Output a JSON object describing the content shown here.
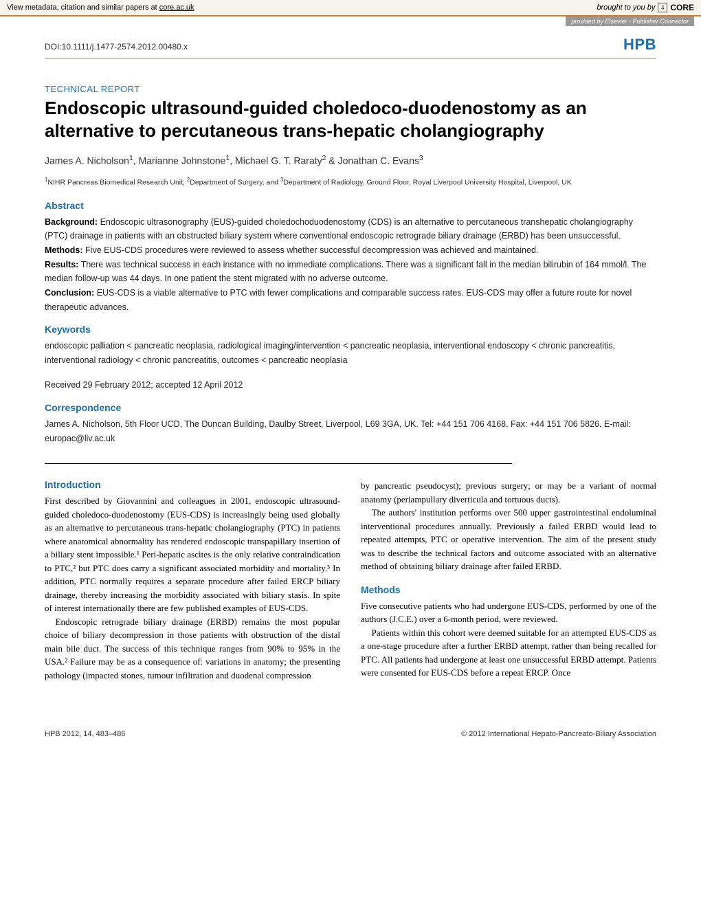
{
  "banner": {
    "left_pre": "View metadata, citation and similar papers at ",
    "link_text": "core.ac.uk",
    "right_pre": "brought to you by",
    "core_label": "CORE",
    "provided": "provided by Elsevier - Publisher Connector"
  },
  "header": {
    "doi": "DOI:10.1111/j.1477-2574.2012.00480.x",
    "journal": "HPB"
  },
  "section_label": "TECHNICAL REPORT",
  "title": "Endoscopic ultrasound-guided choledoco-duodenostomy as an alternative to percutaneous trans-hepatic cholangiography",
  "authors_html": "James A. Nicholson<sup>1</sup>, Marianne Johnstone<sup>1</sup>, Michael G. T. Raraty<sup>2</sup> & Jonathan C. Evans<sup>3</sup>",
  "affiliations_html": "<sup>1</sup>NIHR Pancreas Biomedical Research Unit, <sup>2</sup>Department of Surgery, and <sup>3</sup>Department of Radiology, Ground Floor, Royal Liverpool University Hospital, Liverpool, UK",
  "abstract": {
    "heading": "Abstract",
    "background_label": "Background:",
    "background_text": "  Endoscopic ultrasonography (EUS)-guided choledochoduodenostomy (CDS) is an alternative to percutaneous transhepatic cholangiography (PTC) drainage in patients with an obstructed biliary system where conventional endoscopic retrograde biliary drainage (ERBD) has been unsuccessful.",
    "methods_label": "Methods:",
    "methods_text": "  Five EUS-CDS procedures were reviewed to assess whether successful decompression was achieved and maintained.",
    "results_label": "Results:",
    "results_text": "  There was technical success in each instance with no immediate complications. There was a significant fall in the median bilirubin of 164 mmol/l. The median follow-up was 44 days. In one patient the stent migrated with no adverse outcome.",
    "conclusion_label": "Conclusion:",
    "conclusion_text": "  EUS-CDS is a viable alternative to PTC with fewer complications and comparable success rates. EUS-CDS may offer a future route for novel therapeutic advances."
  },
  "keywords": {
    "heading": "Keywords",
    "text": "endoscopic palliation < pancreatic neoplasia, radiological imaging/intervention < pancreatic neoplasia, interventional endoscopy < chronic pancreatitis, interventional radiology < chronic pancreatitis, outcomes < pancreatic neoplasia"
  },
  "received": "Received 29 February 2012; accepted 12 April 2012",
  "correspondence": {
    "heading": "Correspondence",
    "text": "James A. Nicholson, 5th Floor UCD, The Duncan Building, Daulby Street, Liverpool, L69 3GA, UK. Tel: +44 151 706 4168. Fax: +44 151 706 5826. E-mail: europac@liv.ac.uk"
  },
  "introduction": {
    "heading": "Introduction",
    "p1": "First described by Giovannini and colleagues in 2001, endoscopic ultrasound-guided choledoco-duodenostomy (EUS-CDS) is increasingly being used globally as an alternative to percutaneous trans-hepatic cholangiography (PTC) in patients where anatomical abnormality has rendered endoscopic transpapillary insertion of a biliary stent impossible.¹ Peri-hepatic ascites is the only relative contraindication to PTC,² but PTC does carry a significant associated morbidity and mortality.³ In addition, PTC normally requires a separate procedure after failed ERCP biliary drainage, thereby increasing the morbidity associated with biliary stasis. In spite of interest internationally there are few published examples of EUS-CDS.",
    "p2": "Endoscopic retrograde biliary drainage (ERBD) remains the most popular choice of biliary decompression in those patients with obstruction of the distal main bile duct. The success of this technique ranges from 90% to 95% in the USA.² Failure may be as a consequence of: variations in anatomy; the presenting pathology (impacted stones, tumour infiltration and duodenal compression",
    "p3_right": "by pancreatic pseudocyst); previous surgery; or may be a variant of normal anatomy (periampullary diverticula and tortuous ducts).",
    "p4_right": "The authors' institution performs over 500 upper gastrointestinal endoluminal interventional procedures annually. Previously a failed ERBD would lead to repeated attempts, PTC or operative intervention. The aim of the present study was to describe the technical factors and outcome associated with an alternative method of obtaining biliary drainage after failed ERBD."
  },
  "methods": {
    "heading": "Methods",
    "p1": "Five consecutive patients who had undergone EUS-CDS, performed by one of the authors (J.C.E.) over a 6-month period, were reviewed.",
    "p2": "Patients within this cohort were deemed suitable for an attempted EUS-CDS as a one-stage procedure after a further ERBD attempt, rather than being recalled for PTC. All patients had undergone at least one unsuccessful ERBD attempt. Patients were consented for EUS-CDS before a repeat ERCP. Once"
  },
  "footer": {
    "left": "HPB 2012, 14, 483–486",
    "right": "© 2012 International Hepato-Pancreato-Biliary Association"
  },
  "colors": {
    "accent": "#1a6fb0",
    "banner_bg": "#f5f3ea",
    "banner_border": "#d87a1e",
    "rule": "#c9c7bd"
  }
}
